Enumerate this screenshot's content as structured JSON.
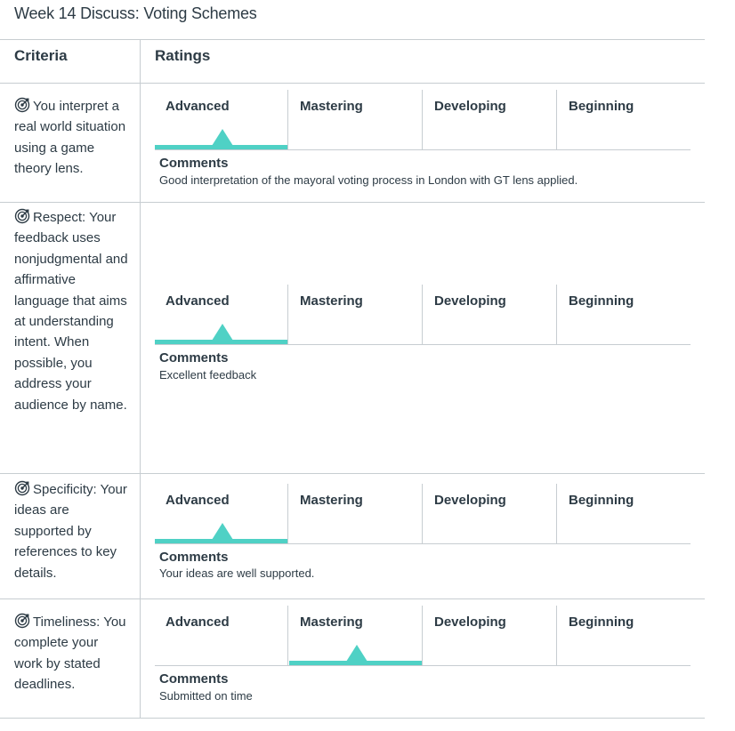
{
  "title": "Week 14 Discuss: Voting Schemes",
  "headers": {
    "criteria": "Criteria",
    "ratings": "Ratings"
  },
  "rating_levels": [
    "Advanced",
    "Mastering",
    "Developing",
    "Beginning"
  ],
  "comments_label": "Comments",
  "accent_color": "#4fd1c5",
  "criterion_icon": "target-icon",
  "criteria": [
    {
      "description": "You interpret a real world situation using a game theory lens.",
      "selected_rating": "Advanced",
      "comment": "Good interpretation of the mayoral voting process in London with GT lens applied."
    },
    {
      "description": "Respect: Your feedback uses nonjudgmental and affirmative language that aims at understanding intent. When possible, you address your audience by name.",
      "selected_rating": "Advanced",
      "comment": "Excellent feedback"
    },
    {
      "description": "Specificity: Your ideas are supported by references to key details.",
      "selected_rating": "Advanced",
      "comment": "Your ideas are well supported."
    },
    {
      "description": "Timeliness: You complete your work by stated deadlines.",
      "selected_rating": "Mastering",
      "comment": "Submitted on time"
    }
  ]
}
